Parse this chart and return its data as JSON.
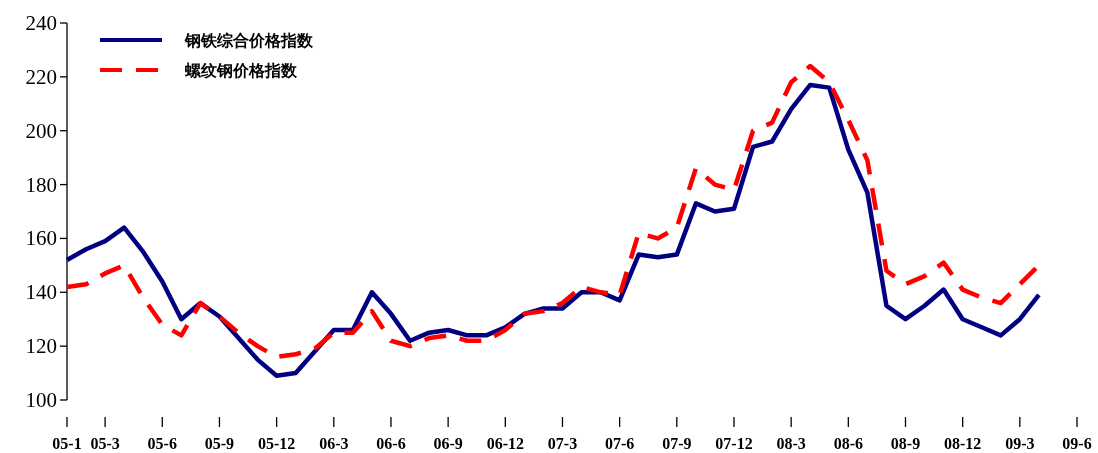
{
  "chart_data": {
    "type": "line",
    "categories": [
      "05-1",
      null,
      "05-3",
      null,
      null,
      "05-6",
      null,
      null,
      "05-9",
      null,
      null,
      "05-12",
      null,
      null,
      "06-3",
      null,
      null,
      "06-6",
      null,
      null,
      "06-9",
      null,
      null,
      "06-12",
      null,
      null,
      "07-3",
      null,
      null,
      "07-6",
      null,
      null,
      "07-9",
      null,
      null,
      "07-12",
      null,
      null,
      "08-3",
      null,
      null,
      "08-6",
      null,
      null,
      "08-9",
      null,
      null,
      "08-12",
      null,
      null,
      "09-3",
      null,
      null,
      "09-6"
    ],
    "series": [
      {
        "name": "钢铁综合价格指数",
        "color": "#000080",
        "line_style": "solid",
        "values": [
          152,
          156,
          159,
          164,
          155,
          144,
          130,
          136,
          131,
          123,
          115,
          109,
          110,
          118,
          126,
          126,
          140,
          132,
          122,
          125,
          126,
          124,
          124,
          127,
          132,
          134,
          134,
          140,
          140,
          137,
          154,
          153,
          154,
          173,
          170,
          171,
          194,
          196,
          208,
          217,
          216,
          193,
          177,
          135,
          130,
          135,
          141,
          130,
          127,
          124,
          130,
          139,
          null,
          null
        ]
      },
      {
        "name": "螺纹钢价格指数",
        "color": "#ff0000",
        "line_style": "dashed",
        "values": [
          142,
          143,
          147,
          150,
          138,
          128,
          124,
          136,
          131,
          125,
          120,
          116,
          117,
          119,
          125,
          125,
          133,
          122,
          120,
          123,
          124,
          122,
          122,
          126,
          132,
          133,
          136,
          142,
          140,
          139,
          162,
          160,
          164,
          186,
          180,
          178,
          200,
          203,
          218,
          224,
          218,
          204,
          189,
          148,
          143,
          146,
          151,
          141,
          138,
          136,
          143,
          150,
          null,
          null
        ]
      }
    ],
    "ylim": [
      100,
      240
    ],
    "yticks": [
      100,
      120,
      140,
      160,
      180,
      200,
      220,
      240
    ],
    "legend": "top left"
  }
}
